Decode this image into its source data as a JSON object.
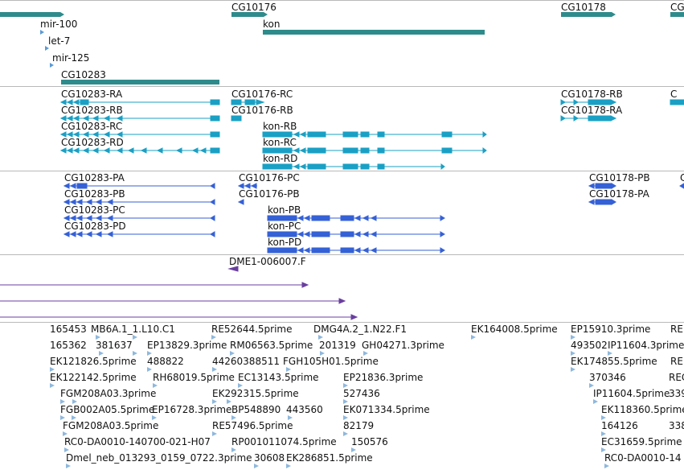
{
  "colors": {
    "gene": "#2e8b8b",
    "transcript": "#1aa0c4",
    "protein": "#3561d6",
    "domain": "#6a3fa0",
    "est": "#8fb8dc",
    "separator": "#b9b9b9"
  },
  "genes": {
    "labels": {
      "mir100": "mir-100",
      "let7": "let-7",
      "mir125": "mir-125",
      "cg10283": "CG10283",
      "cg10176": "CG10176",
      "kon": "kon",
      "cg10178": "CG10178",
      "cg_edge": "CG"
    }
  },
  "transcripts": {
    "labels": {
      "cg10283_ra": "CG10283-RA",
      "cg10283_rb": "CG10283-RB",
      "cg10283_rc": "CG10283-RC",
      "cg10283_rd": "CG10283-RD",
      "cg10176_rc": "CG10176-RC",
      "cg10176_rb": "CG10176-RB",
      "kon_rb": "kon-RB",
      "kon_rc": "kon-RC",
      "kon_rd": "kon-RD",
      "cg10178_rb": "CG10178-RB",
      "cg10178_ra": "CG10178-RA",
      "cg_edge": "C"
    }
  },
  "proteins": {
    "labels": {
      "cg10283_pa": "CG10283-PA",
      "cg10283_pb": "CG10283-PB",
      "cg10283_pc": "CG10283-PC",
      "cg10283_pd": "CG10283-PD",
      "cg10176_pc": "CG10176-PC",
      "cg10176_pb": "CG10176-PB",
      "kon_pb": "kon-PB",
      "kon_pc": "kon-PC",
      "kon_pd": "kon-PD",
      "cg10178_pb": "CG10178-PB",
      "cg10178_pa": "CG10178-PA",
      "cg_edge": "C"
    }
  },
  "domains": {
    "labels": {
      "dme1": "DME1-006007.F"
    }
  },
  "ests": {
    "labels": {
      "e165453": "165453",
      "mb6a": "MB6A.1_1.L10.C1",
      "re52644": "RE52644.5prime",
      "dmg4a2": "DMG4A.2_1.N22.F1",
      "ek164008": "EK164008.5prime",
      "ep15910": "EP15910.3prime",
      "re_edge1": "RE",
      "e165362": "165362",
      "e381637": "381637",
      "ep13829": "EP13829.3prime",
      "rm06563": "RM06563.5prime",
      "e201319": "201319",
      "gh04271": "GH04271.3prime",
      "e493502": "493502",
      "ip11604a": "IP11604.3prime",
      "ek121826": "EK121826.5prime",
      "e488822": "488822",
      "e44260388": "44260388511",
      "fgh105": "FGH105H01.5prime",
      "ek174855": "EK174855.5prime",
      "re_edge2": "RE",
      "ek122142": "EK122142.5prime",
      "rh68019": "RH68019.5prime",
      "ec13143": "EC13143.5prime",
      "ep21836": "EP21836.3prime",
      "e370346": "370346",
      "rec_edge": "REC",
      "fgm208a03a": "FGM208A03.3prime",
      "ek292315": "EK292315.5prime",
      "e527436": "527436",
      "ip11604b": "IP11604.5prime",
      "e339_edge": "339",
      "fgb002a05": "FGB002A05.5prime",
      "ep16728": "EP16728.3prime",
      "bp548890": "BP548890",
      "e443560": "443560",
      "ek071334": "EK071334.5prime",
      "ek118360": "EK118360.5prime",
      "fgm208a03b": "FGM208A03.5prime",
      "re57496": "RE57496.5prime",
      "e82179": "82179",
      "e164126": "164126",
      "e338_edge": "338",
      "rc0a": "RC0-DA0010-140700-021-H07",
      "rp001011": "RP001011074.5prime",
      "e150576": "150576",
      "ec31659": "EC31659.5prime",
      "dmel_neb": "Dmel_neb_013293_0159_0722.3prime",
      "e30608": "30608",
      "ek286851": "EK286851.5prime",
      "rc0b": "RC0-DA0010-14"
    }
  }
}
